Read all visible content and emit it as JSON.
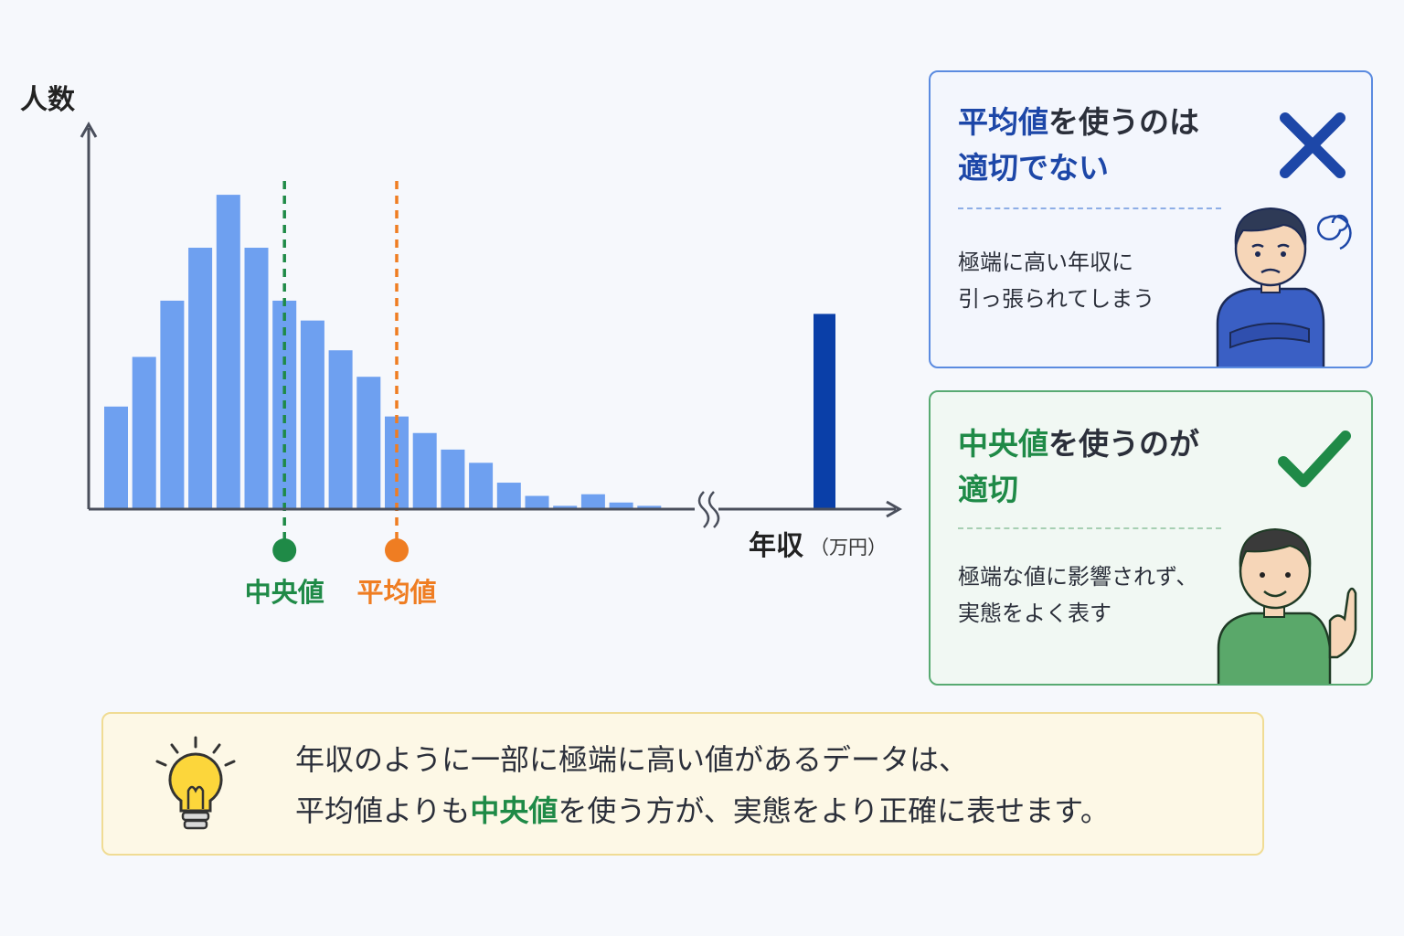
{
  "chart_data": {
    "type": "bar",
    "ylabel": "人数",
    "xlabel": "年収",
    "xunit": "（万円）",
    "values": [
      31,
      46,
      63,
      79,
      95,
      79,
      63,
      57,
      48,
      40,
      28,
      23,
      18,
      14,
      8,
      4,
      1,
      4.5,
      2,
      1
    ],
    "outlier": {
      "value": 59,
      "color": "#0a3fa8"
    },
    "ylim": [
      0,
      100
    ],
    "bar_color": "#6ea0f0",
    "axis_break": true,
    "markers": [
      {
        "label": "中央値",
        "position": 6.5,
        "color": "#1f8a47"
      },
      {
        "label": "平均値",
        "position": 10.5,
        "color": "#ef7d22"
      }
    ]
  },
  "cards": {
    "bad": {
      "title_part1": "平均値",
      "title_part2": "を使うのは",
      "title_line2": "適切でない",
      "body_line1": "極端に高い年収に",
      "body_line2": "引っ張られてしまう",
      "mark_icon": "cross-icon",
      "accent": "#1d47a8"
    },
    "good": {
      "title_part1": "中央値",
      "title_part2": "を使うのが",
      "title_line2": "適切",
      "body_line1": "極端な値に影響されず、",
      "body_line2": "実態をよく表す",
      "mark_icon": "check-icon",
      "accent": "#1f8a47"
    }
  },
  "tip": {
    "icon": "lightbulb-icon",
    "line1": "年収のように一部に極端に高い値があるデータは、",
    "line2_before": "平均値よりも",
    "line2_highlight": "中央値",
    "line2_after": "を使う方が、実態をより正確に表せます。"
  }
}
